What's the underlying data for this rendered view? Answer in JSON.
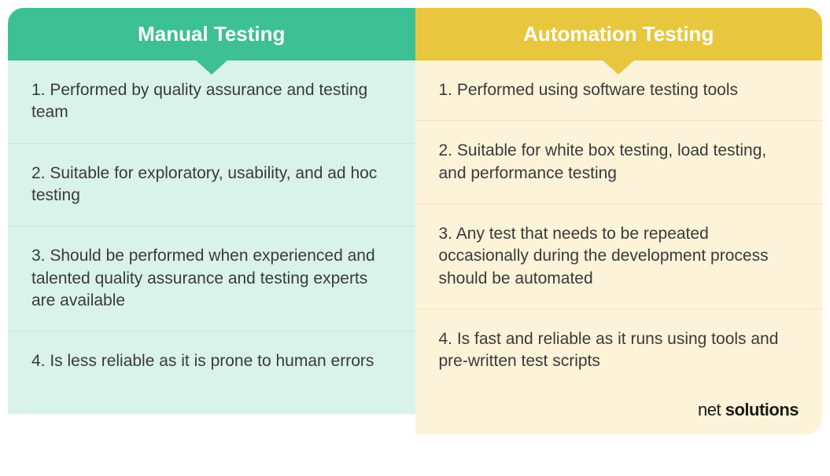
{
  "comparison": {
    "left": {
      "title": "Manual Testing",
      "header_bg": "#3cc094",
      "body_bg": "#d9f3ea",
      "divider_color": "#c5e8db",
      "rows": [
        "1. Performed by quality assurance and testing team",
        "2. Suitable for exploratory, usability, and ad hoc testing",
        "3. Should be performed when experienced and talented quality assurance and testing experts are available",
        "4. Is less reliable as it is prone to human errors"
      ]
    },
    "right": {
      "title": "Automation Testing",
      "header_bg": "#e8c73e",
      "body_bg": "#fdf3d8",
      "divider_color": "#f0e5c2",
      "rows": [
        "1. Performed using software testing tools",
        "2. Suitable for white box testing, load testing, and performance testing",
        "3. Any test that needs to be repeated occasionally during the development process should be automated",
        "4. Is fast and reliable as it runs using tools and pre-written test scripts"
      ]
    }
  },
  "styling": {
    "text_color": "#3a3a3a",
    "header_text_color": "#ffffff",
    "row_fontsize": 21,
    "header_fontsize": 26,
    "border_radius": 20
  },
  "branding": {
    "logo_part1": "net",
    "logo_part2": "solutions"
  }
}
